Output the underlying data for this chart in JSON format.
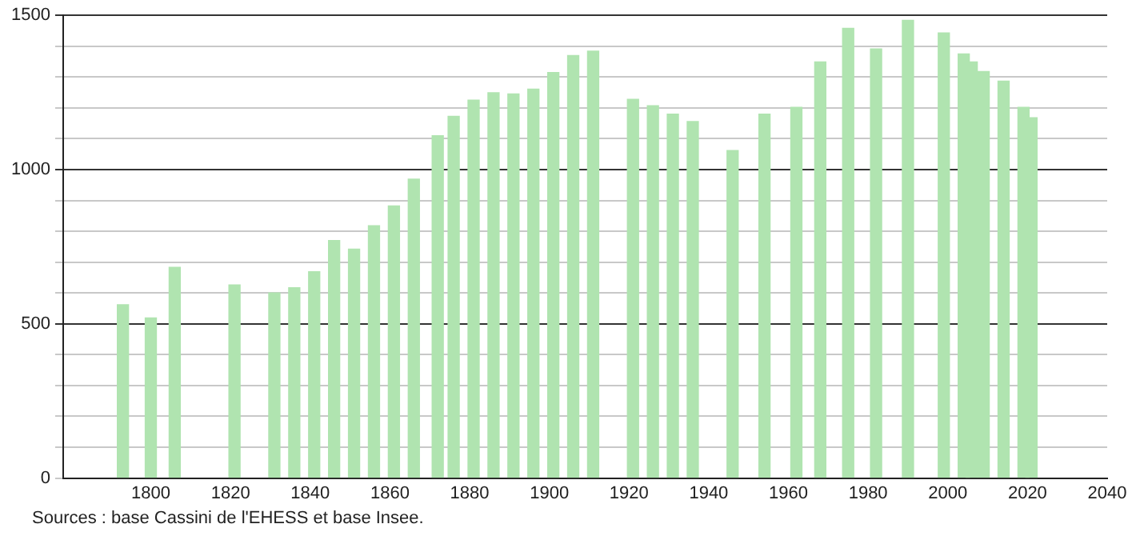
{
  "chart_data": {
    "type": "bar",
    "x": [
      1793,
      1800,
      1806,
      1821,
      1831,
      1836,
      1841,
      1846,
      1851,
      1856,
      1861,
      1866,
      1872,
      1876,
      1881,
      1886,
      1891,
      1896,
      1901,
      1906,
      1911,
      1921,
      1926,
      1931,
      1936,
      1946,
      1954,
      1962,
      1968,
      1975,
      1982,
      1990,
      1999,
      2004,
      2006,
      2009,
      2014,
      2019,
      2021
    ],
    "series": [
      {
        "color": "#b0e4b0",
        "values": [
          562,
          519,
          683,
          626,
          600,
          617,
          669,
          770,
          742,
          818,
          882,
          969,
          1110,
          1173,
          1225,
          1249,
          1245,
          1261,
          1315,
          1370,
          1384,
          1228,
          1207,
          1180,
          1156,
          1062,
          1180,
          1202,
          1349,
          1458,
          1391,
          1484,
          1443,
          1375,
          1349,
          1318,
          1287,
          1202,
          1168
        ]
      }
    ],
    "xlim": [
      1778,
      2040
    ],
    "xticks": [
      1800,
      1820,
      1840,
      1860,
      1880,
      1900,
      1920,
      1940,
      1960,
      1980,
      2000,
      2020,
      2040
    ],
    "ylim": [
      0,
      1500
    ],
    "yticks": [
      0,
      {
        "value": 100,
        "label": null
      },
      {
        "value": 200,
        "label": null
      },
      {
        "value": 300,
        "label": null
      },
      {
        "value": 400,
        "label": null
      },
      500,
      {
        "value": 600,
        "label": null
      },
      {
        "value": 700,
        "label": null
      },
      {
        "value": 800,
        "label": null
      },
      {
        "value": 900,
        "label": null
      },
      1000,
      {
        "value": 1100,
        "label": null
      },
      {
        "value": 1200,
        "label": null
      },
      {
        "value": 1300,
        "label": null
      },
      {
        "value": 1400,
        "label": null
      },
      1500
    ],
    "grid": "y",
    "legend": false,
    "annotations": [
      "Sources : base Cassini de l'EHESS et base Insee."
    ]
  }
}
